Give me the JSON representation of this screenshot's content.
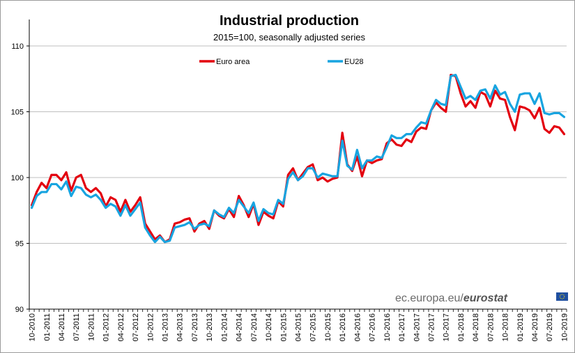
{
  "chart_data": {
    "type": "line",
    "title": "Industrial production",
    "subtitle": "2015=100, seasonally adjusted series",
    "xlabel": "",
    "ylabel": "",
    "ylim": [
      90,
      110
    ],
    "yticks": [
      90,
      95,
      100,
      105,
      110
    ],
    "grid": true,
    "legend_position": "top-center",
    "tick_labels": [
      "10-2010",
      "01-2011",
      "04-2011",
      "07-2011",
      "10-2011",
      "01-2012",
      "04-2012",
      "07-2012",
      "10-2012",
      "01-2013",
      "04-2013",
      "07-2013",
      "10-2013",
      "01-2014",
      "04-2014",
      "07-2014",
      "10-2014",
      "01-2015",
      "04-2015",
      "07-2015",
      "10-2015",
      "01-2016",
      "04-2016",
      "07-2016",
      "10-2016",
      "01-2017",
      "04-2017",
      "07-2017",
      "10-2017",
      "01-2018",
      "04-2018",
      "07-2018",
      "10-2018",
      "01-2019",
      "04-2019",
      "07-2019",
      "10-2019"
    ],
    "series": [
      {
        "name": "Euro area",
        "color": "#e3000f",
        "values": [
          97.9,
          98.9,
          99.6,
          99.2,
          100.2,
          100.2,
          99.8,
          100.4,
          99.0,
          100.0,
          100.2,
          99.2,
          98.9,
          99.2,
          98.8,
          97.8,
          98.5,
          98.3,
          97.4,
          98.3,
          97.4,
          97.9,
          98.5,
          96.5,
          95.9,
          95.3,
          95.6,
          95.1,
          95.3,
          96.5,
          96.6,
          96.8,
          96.9,
          95.9,
          96.5,
          96.7,
          96.1,
          97.5,
          97.1,
          96.9,
          97.6,
          97.0,
          98.6,
          97.9,
          97.0,
          98.0,
          96.4,
          97.4,
          97.1,
          96.9,
          98.2,
          97.8,
          100.2,
          100.7,
          99.8,
          100.3,
          100.8,
          101.0,
          99.8,
          100.0,
          99.7,
          99.9,
          100.0,
          103.4,
          101.0,
          100.5,
          101.6,
          100.1,
          101.3,
          101.1,
          101.3,
          101.4,
          102.6,
          102.9,
          102.5,
          102.4,
          102.9,
          102.7,
          103.5,
          103.8,
          103.7,
          105.1,
          105.7,
          105.3,
          105.0,
          107.8,
          107.7,
          106.4,
          105.4,
          105.8,
          105.3,
          106.5,
          106.3,
          105.4,
          106.6,
          106.0,
          105.9,
          104.6,
          103.6,
          105.4,
          105.3,
          105.1,
          104.5,
          105.3,
          103.7,
          103.4,
          103.9,
          103.8,
          103.3
        ]
      },
      {
        "name": "EU28",
        "color": "#18a4e0",
        "values": [
          97.7,
          98.6,
          98.9,
          98.9,
          99.5,
          99.5,
          99.1,
          99.7,
          98.6,
          99.3,
          99.2,
          98.7,
          98.5,
          98.7,
          98.3,
          97.7,
          98.0,
          97.8,
          97.1,
          97.9,
          97.1,
          97.6,
          98.1,
          96.2,
          95.6,
          95.1,
          95.5,
          95.1,
          95.2,
          96.2,
          96.3,
          96.4,
          96.6,
          96.1,
          96.4,
          96.5,
          96.3,
          97.5,
          97.2,
          97.0,
          97.7,
          97.3,
          98.3,
          97.8,
          97.3,
          98.1,
          96.7,
          97.6,
          97.3,
          97.2,
          98.3,
          98.0,
          99.9,
          100.4,
          99.8,
          100.1,
          100.7,
          100.7,
          100.0,
          100.3,
          100.2,
          100.1,
          100.1,
          102.8,
          100.9,
          100.6,
          102.1,
          100.7,
          101.3,
          101.3,
          101.6,
          101.5,
          102.3,
          103.2,
          103.0,
          103.0,
          103.3,
          103.3,
          103.8,
          104.2,
          104.1,
          105.1,
          105.9,
          105.6,
          105.5,
          107.7,
          107.8,
          106.9,
          106.0,
          106.2,
          105.9,
          106.6,
          106.7,
          106.0,
          107.0,
          106.3,
          106.5,
          105.6,
          105.0,
          106.3,
          106.4,
          106.4,
          105.6,
          106.4,
          104.9,
          104.8,
          104.9,
          104.9,
          104.6
        ]
      }
    ]
  },
  "source": {
    "prefix": "ec.europa.eu/",
    "brand": "eurostat"
  },
  "colors": {
    "grid": "#bfbfbf",
    "axis": "#000000",
    "text": "#000000",
    "source_text": "#6b6b6b",
    "eu_flag_bg": "#1f4fa0",
    "eu_flag_star": "#ffdd00"
  }
}
